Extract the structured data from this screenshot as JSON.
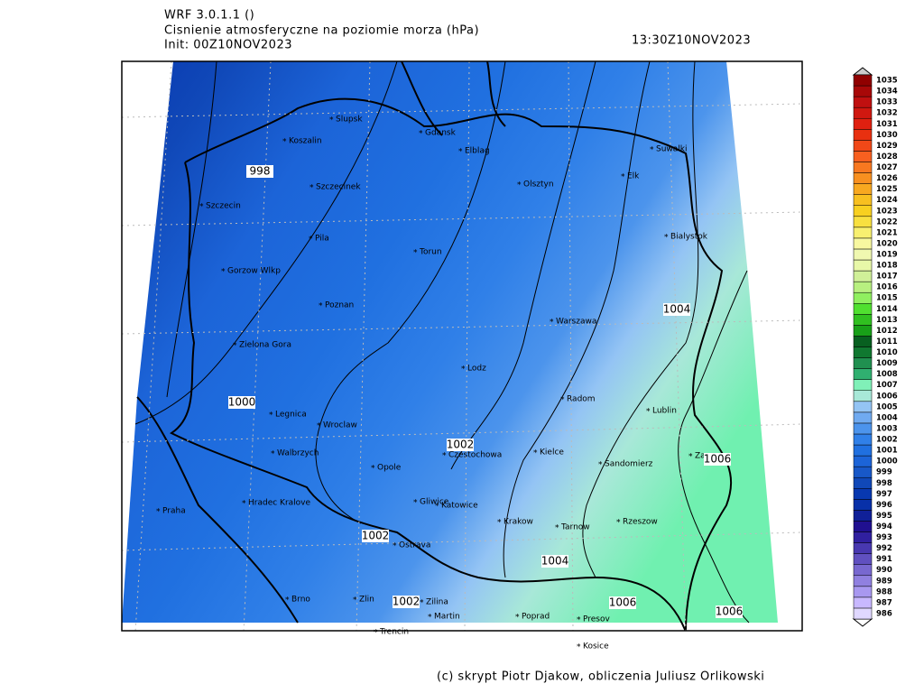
{
  "header": {
    "model": "WRF 3.0.1.1 ()",
    "title": "Cisnienie atmosferyczne na poziomie morza (hPa)",
    "init": "Init: 00Z10NOV2023",
    "valid": "13:30Z10NOV2023"
  },
  "footer": "(c) skrypt Piotr Djakow, obliczenia Juliusz Orlikowski",
  "cities": [
    "Slupsk",
    "Koszalin",
    "Gdansk",
    "Elblag",
    "Suwalki",
    "Elk",
    "Szczecinek",
    "Olsztyn",
    "Szczecin",
    "Bialystok",
    "Pila",
    "Torun",
    "Gorzow Wlkp",
    "Poznan",
    "Warszawa",
    "Zielona Gora",
    "Lodz",
    "Radom",
    "Lublin",
    "Legnica",
    "Wroclaw",
    "Czestochowa",
    "Kielce",
    "Walbrzych",
    "Zamosc",
    "Opole",
    "Sandomierz",
    "Praha",
    "Hradec Kralove",
    "Gliwice",
    "Katowice",
    "Krakow",
    "Tarnow",
    "Rzeszow",
    "Ostrava",
    "Brno",
    "Zlin",
    "Zilina",
    "Martin",
    "Poprad",
    "Presov",
    "Trencin",
    "Kosice"
  ],
  "contour_labels": [
    998,
    1000,
    1002,
    1004,
    1006,
    1002,
    1004,
    1006,
    1006,
    1002
  ],
  "colorbar": {
    "levels": [
      986,
      987,
      988,
      989,
      990,
      991,
      992,
      993,
      994,
      995,
      996,
      997,
      998,
      999,
      1000,
      1001,
      1002,
      1003,
      1004,
      1005,
      1006,
      1007,
      1008,
      1009,
      1010,
      1011,
      1012,
      1013,
      1014,
      1015,
      1016,
      1017,
      1018,
      1019,
      1020,
      1021,
      1022,
      1023,
      1024,
      1025,
      1026,
      1027,
      1028,
      1029,
      1030,
      1031,
      1032,
      1033,
      1034,
      1035
    ],
    "colors": [
      "#e0d8ff",
      "#c8b8ff",
      "#a898f0",
      "#9080e0",
      "#7868d0",
      "#6050c0",
      "#4838b0",
      "#3020a0",
      "#201090",
      "#102098",
      "#0830a8",
      "#0838b0",
      "#1048b8",
      "#1858c8",
      "#1c64d8",
      "#2070e0",
      "#3080e8",
      "#4c94ec",
      "#70aaf0",
      "#94c4f4",
      "#a8e8d8",
      "#80f0b8",
      "#30b070",
      "#209050",
      "#107830",
      "#086020",
      "#18a018",
      "#30c020",
      "#50e030",
      "#90f060",
      "#b8f080",
      "#d0f098",
      "#e8f8a8",
      "#f0f8b0",
      "#f8f8a0",
      "#f8f070",
      "#f8e040",
      "#f8d020",
      "#f8c020",
      "#f8a820",
      "#f89020",
      "#f87820",
      "#f86020",
      "#f04818",
      "#e83010",
      "#e02010",
      "#d01810",
      "#c01010",
      "#a80808",
      "#900000"
    ]
  }
}
